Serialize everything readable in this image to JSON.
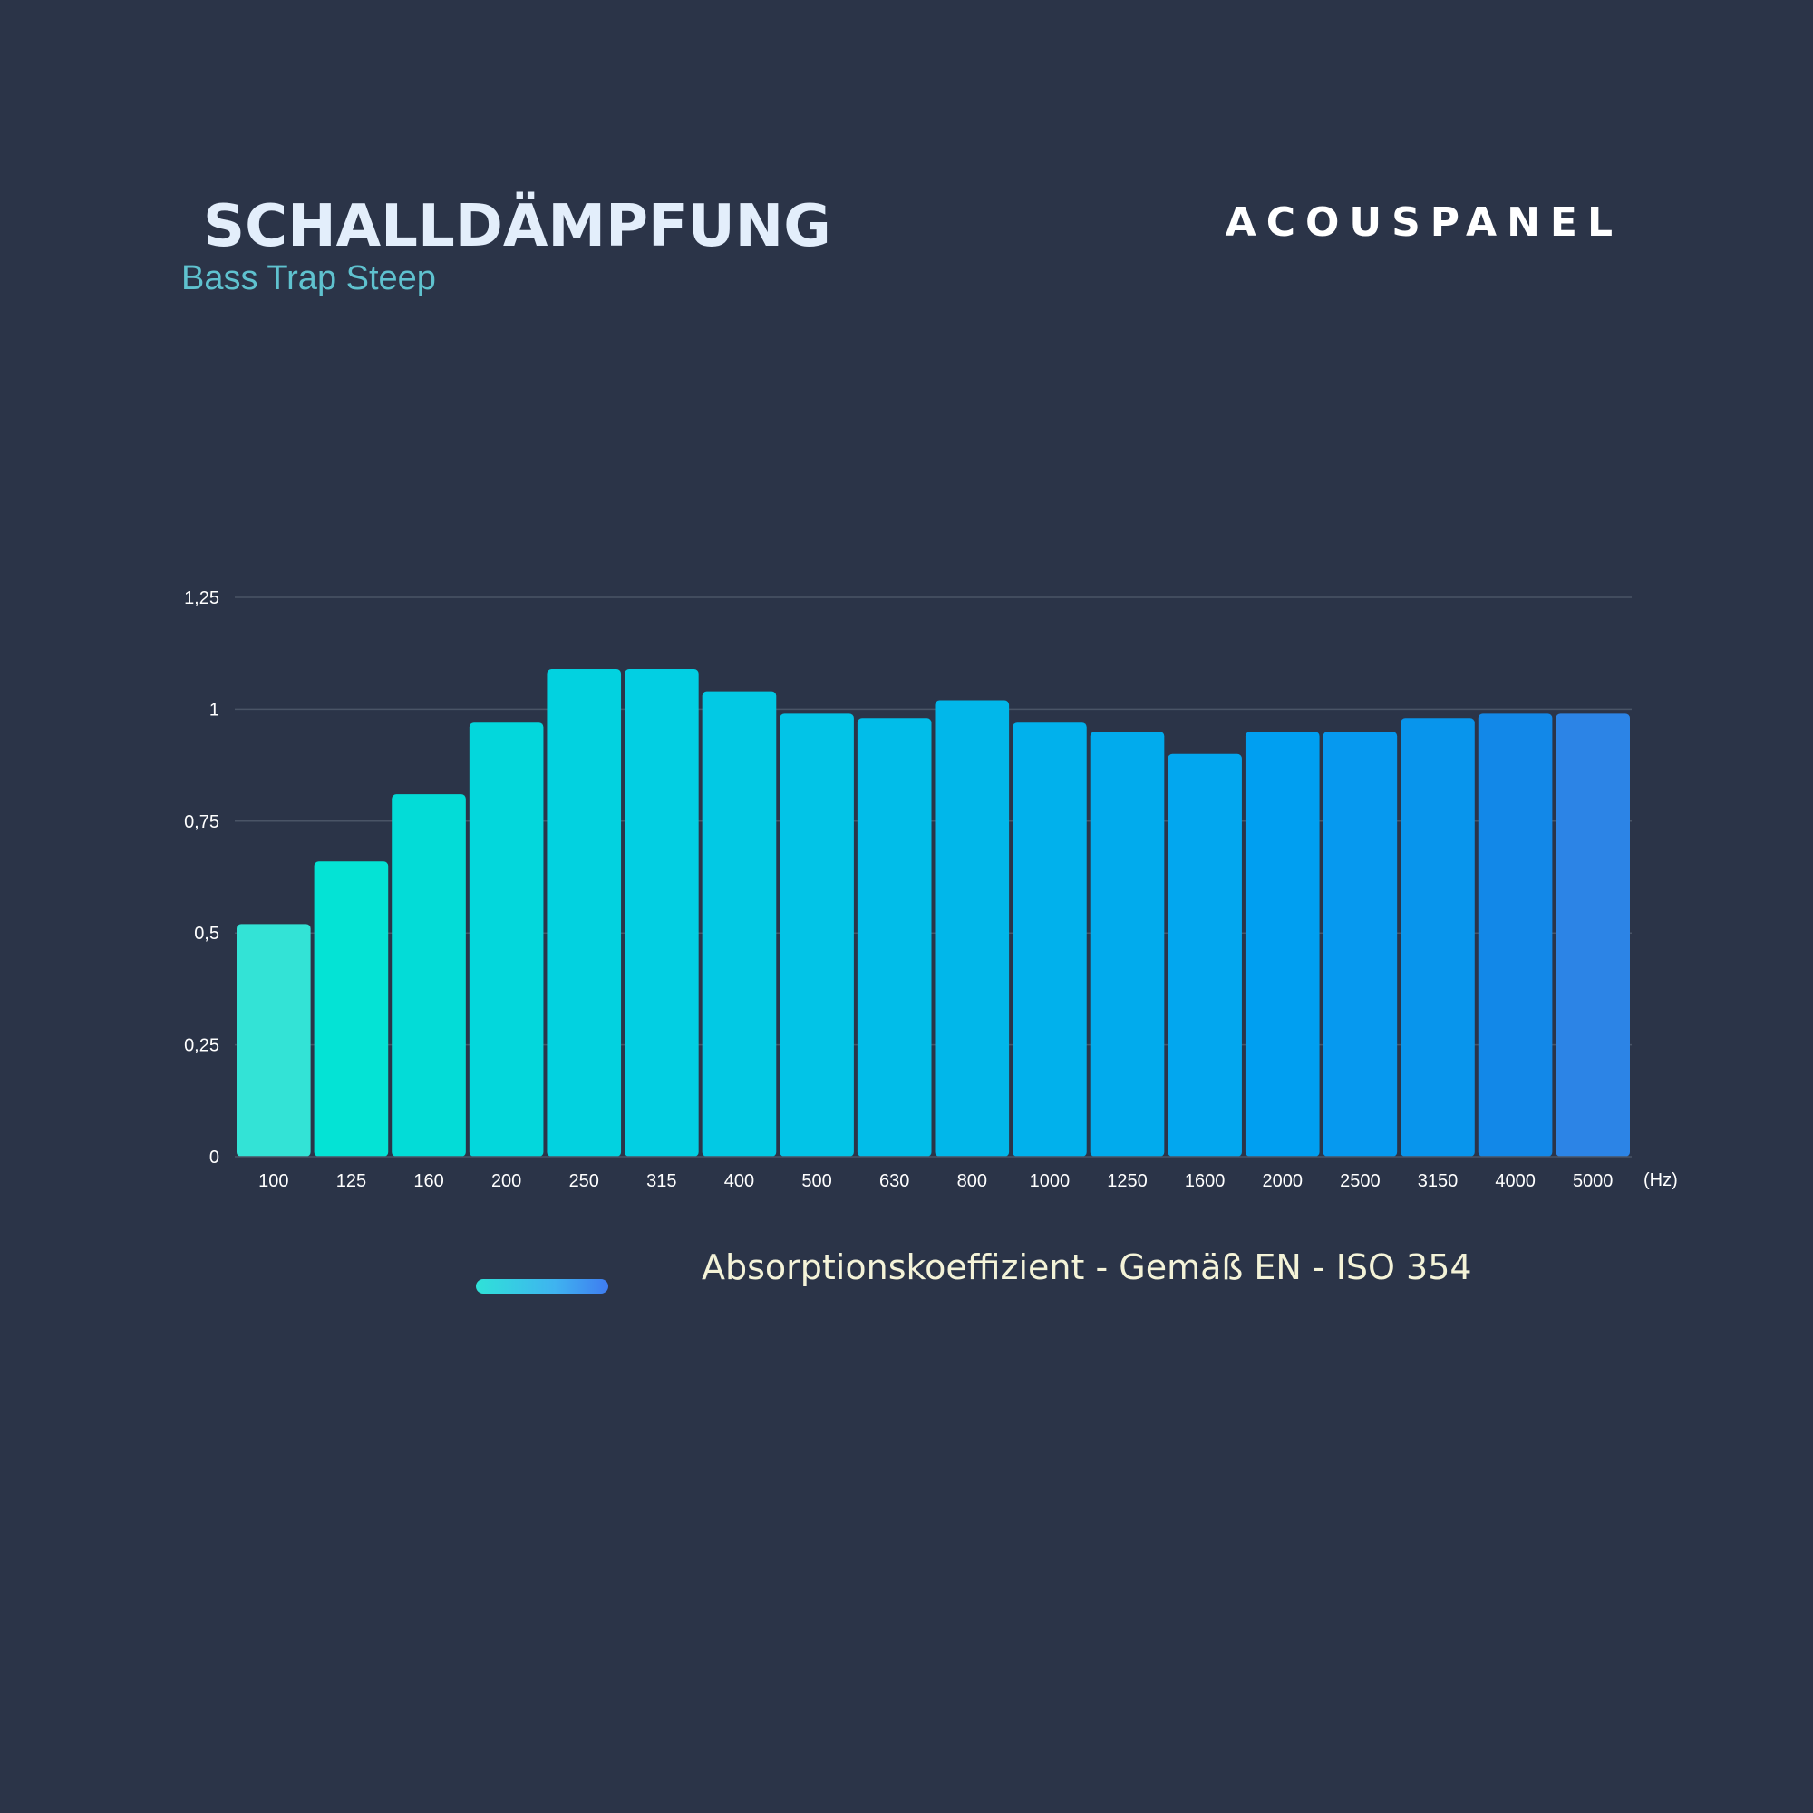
{
  "header": {
    "title": "SCHALLDÄMPFUNG",
    "subtitle": "Bass Trap Steep",
    "brand": "ACOUSPANEL"
  },
  "legend": {
    "label": "Absorptionskoeffizient - Gemäß EN - ISO 354"
  },
  "chart_data": {
    "type": "bar",
    "categories": [
      "100",
      "125",
      "160",
      "200",
      "250",
      "315",
      "400",
      "500",
      "630",
      "800",
      "1000",
      "1250",
      "1600",
      "2000",
      "2500",
      "3150",
      "4000",
      "5000"
    ],
    "values": [
      0.52,
      0.66,
      0.81,
      0.97,
      1.09,
      1.09,
      1.04,
      0.99,
      0.98,
      1.02,
      0.97,
      0.95,
      0.9,
      0.95,
      0.95,
      0.98,
      0.99,
      0.99
    ],
    "y_ticks": [
      "0",
      "0,25",
      "0,5",
      "0,75",
      "1",
      "1,25"
    ],
    "y_tick_values": [
      0,
      0.25,
      0.5,
      0.75,
      1,
      1.25
    ],
    "x_unit": "(Hz)",
    "ylim": [
      0,
      1.25
    ],
    "grid": true,
    "colors": [
      "#33e3d6",
      "#04e3d5",
      "#03dcd7",
      "#03d7dc",
      "#02d2e0",
      "#02cfe3",
      "#02c9e4",
      "#02c4e7",
      "#01bde9",
      "#01b7ea",
      "#01b1ec",
      "#01abed",
      "#02a7ef",
      "#009ff1",
      "#0699ef",
      "#0895ec",
      "#1288e8",
      "#2c84e6"
    ]
  }
}
